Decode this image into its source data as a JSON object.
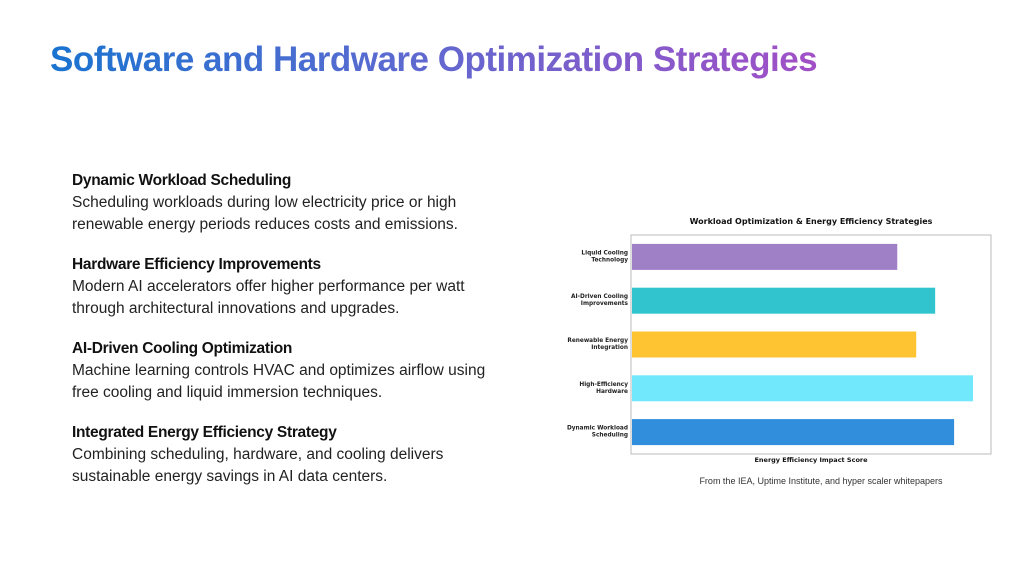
{
  "title": "Software and Hardware Optimization Strategies",
  "items": [
    {
      "heading": "Dynamic Workload Scheduling",
      "text": "Scheduling workloads during low electricity price or high renewable energy periods reduces costs and emissions."
    },
    {
      "heading": "Hardware Efficiency Improvements",
      "text": "Modern AI accelerators offer higher performance per watt through architectural innovations and upgrades."
    },
    {
      "heading": "AI-Driven Cooling Optimization",
      "text": "Machine learning controls HVAC and optimizes airflow using free cooling and liquid immersion techniques."
    },
    {
      "heading": "Integrated Energy Efficiency Strategy",
      "text": "Combining scheduling, hardware, and cooling delivers sustainable energy savings in AI data centers."
    }
  ],
  "source": "From the IEA, Uptime Institute, and hyper scaler whitepapers",
  "chart_data": {
    "type": "bar",
    "orientation": "horizontal",
    "title": "Workload Optimization & Energy Efficiency Strategies",
    "xlabel": "Energy Efficiency Impact Score",
    "ylabel": "",
    "categories": [
      "Liquid Cooling\nTechnology",
      "AI-Driven Cooling\nImprovements",
      "Renewable Energy\nIntegration",
      "High-Efficiency\nHardware",
      "Dynamic Workload\nScheduling"
    ],
    "values": [
      70,
      80,
      75,
      90,
      85
    ],
    "colors": [
      "#9f80c6",
      "#31c4cf",
      "#fec431",
      "#71e8fb",
      "#318edc"
    ],
    "xlim": [
      0,
      95
    ],
    "grid": false
  }
}
